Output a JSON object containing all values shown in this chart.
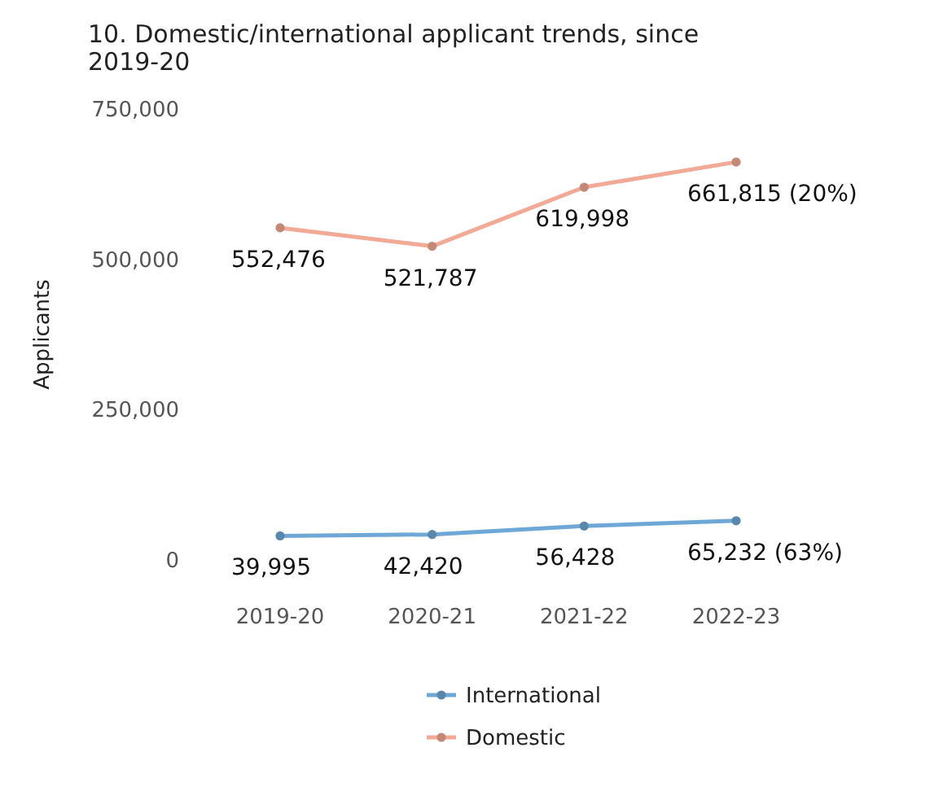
{
  "chart_data": {
    "type": "line",
    "title": "10. Domestic/international applicant trends, since 2019-20",
    "ylabel": "Applicants",
    "categories": [
      "2019-20",
      "2020-21",
      "2021-22",
      "2022-23"
    ],
    "series": [
      {
        "name": "International",
        "color": "#6fa8d6",
        "values": [
          39995,
          42420,
          56428,
          65232
        ],
        "value_labels": [
          "39,995",
          "42,420",
          "56,428",
          "65,232 (63%)"
        ]
      },
      {
        "name": "Domestic",
        "color": "#f2a995",
        "values": [
          552476,
          521787,
          619998,
          661815
        ],
        "value_labels": [
          "552,476",
          "521,787",
          "619,998",
          "661,815 (20%)"
        ]
      }
    ],
    "ylim": [
      0,
      750000
    ],
    "yticks": [
      {
        "value": 0,
        "label": "0"
      },
      {
        "value": 250000,
        "label": "250,000"
      },
      {
        "value": 500000,
        "label": "500,000"
      },
      {
        "value": 750000,
        "label": "750,000"
      }
    ],
    "grid": false,
    "legend": "bottom",
    "marker": "circle",
    "line_style": "solid"
  }
}
